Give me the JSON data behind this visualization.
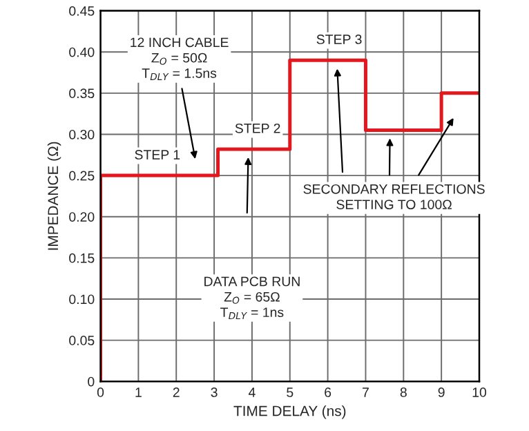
{
  "chart_data": {
    "type": "step",
    "xlabel": "TIME DELAY (ns)",
    "ylabel": "IMPEDANCE (Ω)",
    "x": [
      0,
      0,
      3.1,
      5,
      7,
      9,
      10
    ],
    "series": [
      {
        "color": "#e3181f",
        "values": [
          0,
          0.25,
          0.282,
          0.39,
          0.305,
          0.35,
          0.35
        ]
      }
    ],
    "xlim": [
      0,
      10
    ],
    "xticks": [
      0,
      1,
      2,
      3,
      4,
      5,
      6,
      7,
      8,
      9,
      10
    ],
    "ylim": [
      0,
      0.45
    ],
    "yticks": [
      0,
      0.05,
      {
        "value": 0.1,
        "label": "0.10"
      },
      0.15,
      {
        "value": 0.2,
        "label": "0.20"
      },
      0.25,
      {
        "value": 0.3,
        "label": "0.30"
      },
      0.35,
      {
        "value": 0.4,
        "label": "0.40"
      },
      0.45
    ],
    "grid": true,
    "annotations": [
      "12 INCH CABLE\nZ$_{O}$ = 50Ω\nT$_{DLY}$ = 1.5ns",
      {
        "text": "STEP 1",
        "x": 1.5,
        "y": 0.25
      },
      {
        "text": "STEP 2",
        "x": 4.15,
        "y": 0.282
      },
      {
        "text": "STEP 3",
        "x": 6.3,
        "y": 0.39
      },
      "DATA PCB RUN\nZ$_{O}$ = 65Ω\nT$_{DLY}$ = 1ns",
      "SECONDARY REFLECTIONS\nSETTING TO 100Ω"
    ]
  }
}
